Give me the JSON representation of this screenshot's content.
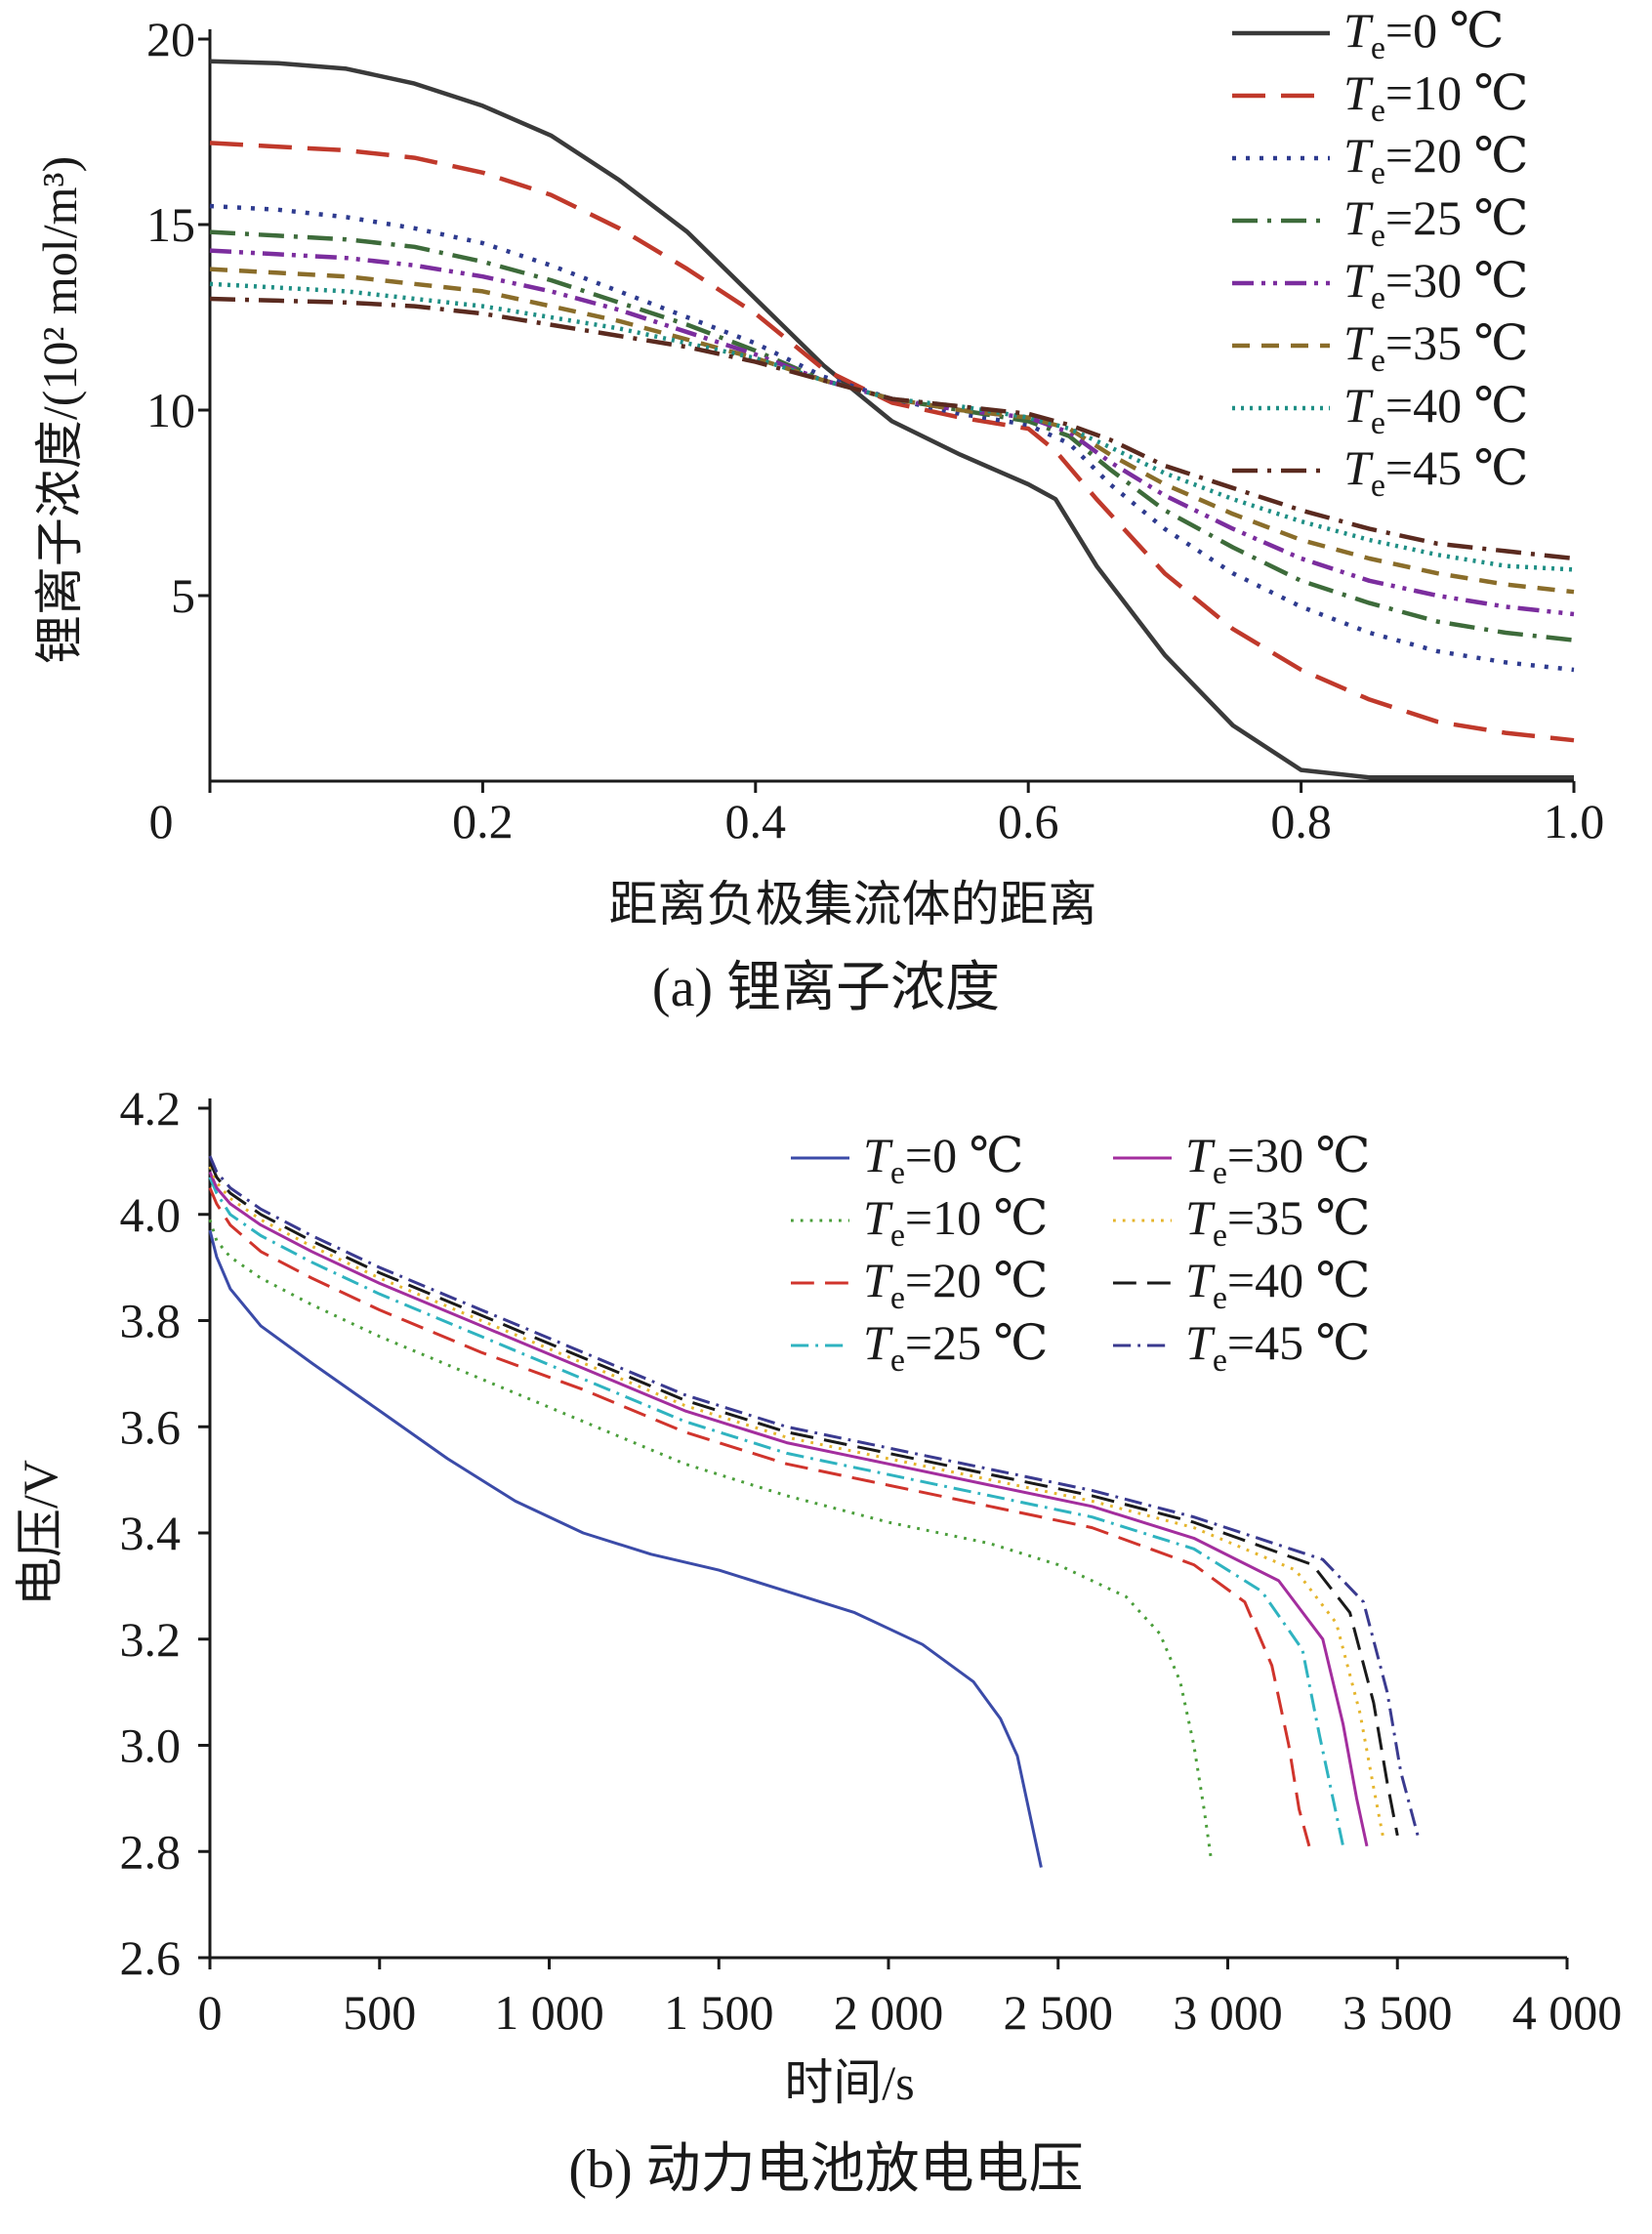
{
  "chart_data": [
    {
      "type": "line",
      "caption": "(a)  锂离子浓度",
      "xlabel": "距离负极集流体的距离",
      "ylabel": "锂离子浓度/(10² mol/m³)",
      "xlim": [
        0,
        1.0
      ],
      "ylim": [
        0,
        20
      ],
      "x_ticks": [
        "0",
        "0.2",
        "0.4",
        "0.6",
        "0.8",
        "1.0"
      ],
      "y_ticks": [
        "5",
        "10",
        "15",
        "20"
      ],
      "grid": false,
      "legend_position": "top-right",
      "series": [
        {
          "name": "Te=0 ℃",
          "label_var": "T",
          "label_sub": "e",
          "label_rest": "=0 ℃",
          "color": "#3a3a3a",
          "dash": "solid",
          "x": [
            0,
            0.05,
            0.1,
            0.15,
            0.2,
            0.25,
            0.3,
            0.35,
            0.4,
            0.45,
            0.5,
            0.55,
            0.6,
            0.62,
            0.65,
            0.7,
            0.75,
            0.8,
            0.85,
            0.9,
            0.95,
            1.0
          ],
          "y": [
            19.4,
            19.35,
            19.2,
            18.8,
            18.2,
            17.4,
            16.2,
            14.8,
            13.0,
            11.2,
            9.7,
            8.8,
            8.0,
            7.6,
            5.8,
            3.4,
            1.5,
            0.3,
            0.1,
            0.1,
            0.1,
            0.1
          ]
        },
        {
          "name": "Te=10 ℃",
          "label_var": "T",
          "label_sub": "e",
          "label_rest": "=10 ℃",
          "color": "#c0392b",
          "dash": "long-dash",
          "x": [
            0,
            0.05,
            0.1,
            0.15,
            0.2,
            0.25,
            0.3,
            0.35,
            0.4,
            0.45,
            0.5,
            0.55,
            0.6,
            0.62,
            0.65,
            0.7,
            0.75,
            0.8,
            0.85,
            0.9,
            0.95,
            1.0
          ],
          "y": [
            17.2,
            17.1,
            17.0,
            16.8,
            16.4,
            15.8,
            14.9,
            13.8,
            12.6,
            11.1,
            10.2,
            9.8,
            9.5,
            8.9,
            7.6,
            5.6,
            4.1,
            3.0,
            2.2,
            1.6,
            1.3,
            1.1
          ]
        },
        {
          "name": "Te=20 ℃",
          "label_var": "T",
          "label_sub": "e",
          "label_rest": "=20 ℃",
          "color": "#2e3b8f",
          "dash": "dot",
          "x": [
            0,
            0.05,
            0.1,
            0.15,
            0.2,
            0.25,
            0.3,
            0.35,
            0.4,
            0.45,
            0.5,
            0.55,
            0.6,
            0.63,
            0.66,
            0.7,
            0.75,
            0.8,
            0.85,
            0.9,
            0.95,
            1.0
          ],
          "y": [
            15.5,
            15.4,
            15.2,
            14.9,
            14.5,
            13.9,
            13.2,
            12.5,
            11.8,
            10.9,
            10.3,
            9.9,
            9.6,
            9.1,
            8.0,
            6.8,
            5.6,
            4.7,
            4.0,
            3.5,
            3.2,
            3.0
          ]
        },
        {
          "name": "Te=25 ℃",
          "label_var": "T",
          "label_sub": "e",
          "label_rest": "=25 ℃",
          "color": "#3d6b3a",
          "dash": "dash-dot",
          "x": [
            0,
            0.05,
            0.1,
            0.15,
            0.2,
            0.25,
            0.3,
            0.35,
            0.4,
            0.45,
            0.5,
            0.55,
            0.6,
            0.63,
            0.66,
            0.7,
            0.75,
            0.8,
            0.85,
            0.9,
            0.95,
            1.0
          ],
          "y": [
            14.8,
            14.7,
            14.6,
            14.4,
            14.0,
            13.5,
            12.9,
            12.3,
            11.6,
            10.8,
            10.3,
            10.0,
            9.7,
            9.3,
            8.4,
            7.3,
            6.3,
            5.4,
            4.8,
            4.3,
            4.0,
            3.8
          ]
        },
        {
          "name": "Te=30 ℃",
          "label_var": "T",
          "label_sub": "e",
          "label_rest": "=30 ℃",
          "color": "#7b2d9e",
          "dash": "dash-dot-dot",
          "x": [
            0,
            0.05,
            0.1,
            0.15,
            0.2,
            0.25,
            0.3,
            0.35,
            0.4,
            0.45,
            0.5,
            0.55,
            0.6,
            0.63,
            0.66,
            0.7,
            0.75,
            0.8,
            0.85,
            0.9,
            0.95,
            1.0
          ],
          "y": [
            14.3,
            14.2,
            14.1,
            13.9,
            13.6,
            13.2,
            12.7,
            12.1,
            11.5,
            10.8,
            10.3,
            10.0,
            9.8,
            9.4,
            8.6,
            7.7,
            6.8,
            6.0,
            5.4,
            5.0,
            4.7,
            4.5
          ]
        },
        {
          "name": "Te=35 ℃",
          "label_var": "T",
          "label_sub": "e",
          "label_rest": "=35 ℃",
          "color": "#8a6d2a",
          "dash": "short-dash",
          "x": [
            0,
            0.05,
            0.1,
            0.15,
            0.2,
            0.25,
            0.3,
            0.35,
            0.4,
            0.45,
            0.5,
            0.55,
            0.6,
            0.63,
            0.66,
            0.7,
            0.75,
            0.8,
            0.85,
            0.9,
            0.95,
            1.0
          ],
          "y": [
            13.8,
            13.7,
            13.6,
            13.4,
            13.2,
            12.8,
            12.4,
            11.9,
            11.4,
            10.8,
            10.3,
            10.0,
            9.8,
            9.5,
            8.8,
            8.0,
            7.2,
            6.5,
            6.0,
            5.6,
            5.3,
            5.1
          ]
        },
        {
          "name": "Te=40 ℃",
          "label_var": "T",
          "label_sub": "e",
          "label_rest": "=40 ℃",
          "color": "#1f8f85",
          "dash": "fine-dot",
          "x": [
            0,
            0.05,
            0.1,
            0.15,
            0.2,
            0.25,
            0.3,
            0.35,
            0.4,
            0.45,
            0.5,
            0.55,
            0.6,
            0.63,
            0.66,
            0.7,
            0.75,
            0.8,
            0.85,
            0.9,
            0.95,
            1.0
          ],
          "y": [
            13.4,
            13.3,
            13.2,
            13.0,
            12.8,
            12.5,
            12.2,
            11.8,
            11.4,
            10.8,
            10.3,
            10.1,
            9.8,
            9.5,
            9.0,
            8.3,
            7.6,
            7.0,
            6.5,
            6.1,
            5.8,
            5.7
          ]
        },
        {
          "name": "Te=45 ℃",
          "label_var": "T",
          "label_sub": "e",
          "label_rest": "=45 ℃",
          "color": "#5a2a1f",
          "dash": "dash-dot",
          "x": [
            0,
            0.05,
            0.1,
            0.15,
            0.2,
            0.25,
            0.3,
            0.35,
            0.4,
            0.45,
            0.5,
            0.55,
            0.6,
            0.63,
            0.66,
            0.7,
            0.75,
            0.8,
            0.85,
            0.9,
            0.95,
            1.0
          ],
          "y": [
            13.0,
            12.95,
            12.9,
            12.8,
            12.6,
            12.3,
            12.0,
            11.7,
            11.3,
            10.8,
            10.3,
            10.1,
            9.9,
            9.6,
            9.2,
            8.5,
            7.9,
            7.3,
            6.8,
            6.4,
            6.2,
            6.0
          ]
        }
      ]
    },
    {
      "type": "line",
      "caption": "(b)  动力电池放电电压",
      "xlabel": "时间/s",
      "ylabel": "电压/V",
      "xlim": [
        0,
        4000
      ],
      "ylim": [
        2.6,
        4.2
      ],
      "x_ticks": [
        "0",
        "500",
        "1 000",
        "1 500",
        "2 000",
        "2 500",
        "3 000",
        "3 500",
        "4 000"
      ],
      "y_ticks": [
        "2.6",
        "2.8",
        "3.0",
        "3.2",
        "3.4",
        "3.6",
        "3.8",
        "4.0",
        "4.2"
      ],
      "grid": false,
      "legend_position": "top-right",
      "series": [
        {
          "name": "Te=0 ℃",
          "label_var": "T",
          "label_sub": "e",
          "label_rest": "=0 ℃",
          "color": "#3b4ba8",
          "dash": "solid",
          "x": [
            0,
            20,
            60,
            150,
            300,
            500,
            700,
            900,
            1100,
            1300,
            1500,
            1700,
            1900,
            2100,
            2250,
            2330,
            2380,
            2420,
            2450
          ],
          "y": [
            3.97,
            3.92,
            3.86,
            3.79,
            3.72,
            3.63,
            3.54,
            3.46,
            3.4,
            3.36,
            3.33,
            3.29,
            3.25,
            3.19,
            3.12,
            3.05,
            2.98,
            2.86,
            2.77
          ]
        },
        {
          "name": "Te=10 ℃",
          "label_var": "T",
          "label_sub": "e",
          "label_rest": "=10 ℃",
          "color": "#4a9e3a",
          "dash": "dot",
          "x": [
            0,
            20,
            60,
            150,
            300,
            500,
            800,
            1100,
            1400,
            1700,
            2000,
            2300,
            2500,
            2700,
            2800,
            2860,
            2900,
            2930,
            2950
          ],
          "y": [
            3.99,
            3.95,
            3.92,
            3.88,
            3.83,
            3.77,
            3.69,
            3.61,
            3.53,
            3.47,
            3.42,
            3.38,
            3.34,
            3.28,
            3.21,
            3.12,
            3.0,
            2.88,
            2.79
          ]
        },
        {
          "name": "Te=20 ℃",
          "label_var": "T",
          "label_sub": "e",
          "label_rest": "=20 ℃",
          "color": "#d0342c",
          "dash": "long-dash",
          "x": [
            0,
            20,
            60,
            150,
            300,
            500,
            800,
            1100,
            1400,
            1700,
            2000,
            2300,
            2600,
            2900,
            3050,
            3130,
            3180,
            3210,
            3240
          ],
          "y": [
            4.05,
            4.02,
            3.98,
            3.93,
            3.88,
            3.82,
            3.74,
            3.67,
            3.59,
            3.53,
            3.49,
            3.45,
            3.41,
            3.34,
            3.27,
            3.15,
            3.0,
            2.88,
            2.81
          ]
        },
        {
          "name": "Te=25 ℃",
          "label_var": "T",
          "label_sub": "e",
          "label_rest": "=25 ℃",
          "color": "#2fb3c0",
          "dash": "dash-dot",
          "x": [
            0,
            20,
            60,
            150,
            300,
            500,
            800,
            1100,
            1400,
            1700,
            2000,
            2300,
            2600,
            2900,
            3100,
            3220,
            3270,
            3310,
            3340
          ],
          "y": [
            4.07,
            4.04,
            4.0,
            3.96,
            3.91,
            3.85,
            3.77,
            3.69,
            3.61,
            3.55,
            3.51,
            3.47,
            3.43,
            3.37,
            3.29,
            3.18,
            3.02,
            2.9,
            2.81
          ]
        },
        {
          "name": "Te=30 ℃",
          "label_var": "T",
          "label_sub": "e",
          "label_rest": "=30 ℃",
          "color": "#a32e9e",
          "dash": "solid",
          "x": [
            0,
            20,
            60,
            150,
            300,
            500,
            800,
            1100,
            1400,
            1700,
            2000,
            2300,
            2600,
            2900,
            3150,
            3280,
            3340,
            3380,
            3410
          ],
          "y": [
            4.08,
            4.05,
            4.02,
            3.98,
            3.93,
            3.87,
            3.79,
            3.71,
            3.63,
            3.57,
            3.53,
            3.49,
            3.45,
            3.39,
            3.31,
            3.2,
            3.04,
            2.9,
            2.81
          ]
        },
        {
          "name": "Te=35 ℃",
          "label_var": "T",
          "label_sub": "e",
          "label_rest": "=35 ℃",
          "color": "#e5b52c",
          "dash": "dot",
          "x": [
            0,
            20,
            60,
            150,
            300,
            500,
            800,
            1100,
            1400,
            1700,
            2000,
            2300,
            2600,
            2900,
            3200,
            3320,
            3390,
            3430,
            3460
          ],
          "y": [
            4.09,
            4.06,
            4.03,
            3.99,
            3.94,
            3.88,
            3.8,
            3.72,
            3.64,
            3.58,
            3.54,
            3.5,
            3.46,
            3.41,
            3.33,
            3.23,
            3.06,
            2.92,
            2.82
          ]
        },
        {
          "name": "Te=40 ℃",
          "label_var": "T",
          "label_sub": "e",
          "label_rest": "=40 ℃",
          "color": "#1a1a1a",
          "dash": "long-dash",
          "x": [
            0,
            20,
            60,
            150,
            300,
            500,
            800,
            1100,
            1400,
            1700,
            2000,
            2300,
            2600,
            2900,
            3250,
            3360,
            3430,
            3470,
            3500
          ],
          "y": [
            4.1,
            4.07,
            4.04,
            4.0,
            3.95,
            3.89,
            3.81,
            3.73,
            3.65,
            3.59,
            3.55,
            3.51,
            3.47,
            3.42,
            3.34,
            3.25,
            3.08,
            2.93,
            2.83
          ]
        },
        {
          "name": "Te=45 ℃",
          "label_var": "T",
          "label_sub": "e",
          "label_rest": "=45 ℃",
          "color": "#3a3a8f",
          "dash": "dash-dot",
          "x": [
            0,
            20,
            60,
            150,
            300,
            500,
            800,
            1100,
            1400,
            1700,
            2000,
            2300,
            2600,
            2900,
            3280,
            3400,
            3470,
            3510,
            3560
          ],
          "y": [
            4.11,
            4.08,
            4.05,
            4.01,
            3.96,
            3.9,
            3.82,
            3.74,
            3.66,
            3.6,
            3.56,
            3.52,
            3.48,
            3.43,
            3.35,
            3.27,
            3.1,
            2.95,
            2.83
          ]
        }
      ]
    }
  ]
}
